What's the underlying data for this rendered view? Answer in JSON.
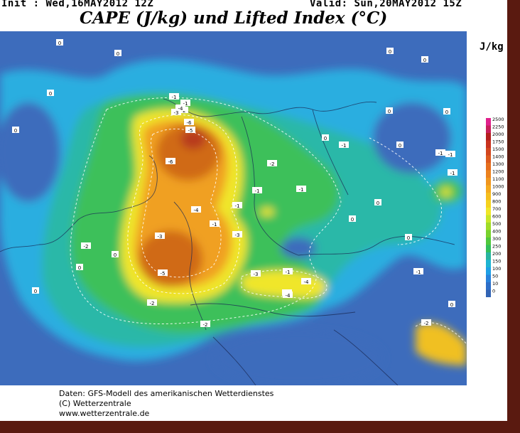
{
  "header": {
    "init_text": "Init : Wed,16MAY2012 12Z",
    "valid_text": "Valid: Sun,20MAY2012 15Z",
    "title": "CAPE (J/kg) und Lifted Index (°C)"
  },
  "legend": {
    "unit": "J/kg",
    "levels": [
      {
        "label": "2500",
        "color": "#e0208c"
      },
      {
        "label": "2250",
        "color": "#c81e5a"
      },
      {
        "label": "2000",
        "color": "#b41e1e"
      },
      {
        "label": "1750",
        "color": "#c8321e"
      },
      {
        "label": "1500",
        "color": "#d2461e"
      },
      {
        "label": "1400",
        "color": "#dc5a1e"
      },
      {
        "label": "1300",
        "color": "#e66e1e"
      },
      {
        "label": "1200",
        "color": "#ec821e"
      },
      {
        "label": "1100",
        "color": "#f0961e"
      },
      {
        "label": "1000",
        "color": "#f5aa1e"
      },
      {
        "label": "900",
        "color": "#f5be1e"
      },
      {
        "label": "800",
        "color": "#f5d21e"
      },
      {
        "label": "700",
        "color": "#f0e628"
      },
      {
        "label": "600",
        "color": "#c8e628"
      },
      {
        "label": "500",
        "color": "#a0dc28"
      },
      {
        "label": "400",
        "color": "#78d22d"
      },
      {
        "label": "300",
        "color": "#50c83c"
      },
      {
        "label": "250",
        "color": "#32be5a"
      },
      {
        "label": "200",
        "color": "#28b4a0"
      },
      {
        "label": "150",
        "color": "#1eb4d2"
      },
      {
        "label": "100",
        "color": "#1ea0e6"
      },
      {
        "label": "50",
        "color": "#2882dc"
      },
      {
        "label": "10",
        "color": "#2d6ec8"
      },
      {
        "label": "0",
        "color": "#3264b4"
      }
    ]
  },
  "map": {
    "colors": {
      "base": "#3d6cbc",
      "cyan": "#2aaee0",
      "teal": "#2ab8a8",
      "green": "#3cc05a",
      "yellow": "#f0e62a",
      "orange": "#f0a020",
      "dark_orange": "#d06a18",
      "red": "#b83a1e"
    },
    "lifted_index_labels": [
      "0",
      "0",
      "0",
      "0",
      "0",
      "0",
      "0",
      "0",
      "0",
      "0",
      "0",
      "0",
      "0",
      "0",
      "0",
      "0",
      "0",
      "-1",
      "-1",
      "-1",
      "-1",
      "-1",
      "-1",
      "-1",
      "-1",
      "-1",
      "-1",
      "-1",
      "-1",
      "-2",
      "-2",
      "-2",
      "-2",
      "-2",
      "-2",
      "-3",
      "-3",
      "-3",
      "-3",
      "-3",
      "-4",
      "-4",
      "-4",
      "-4",
      "-5",
      "-5",
      "-6",
      "-6"
    ]
  },
  "credits": {
    "line1": "Daten: GFS-Modell des amerikanischen Wetterdienstes",
    "line2": "(C) Wetterzentrale",
    "line3": "www.wetterzentrale.de"
  }
}
